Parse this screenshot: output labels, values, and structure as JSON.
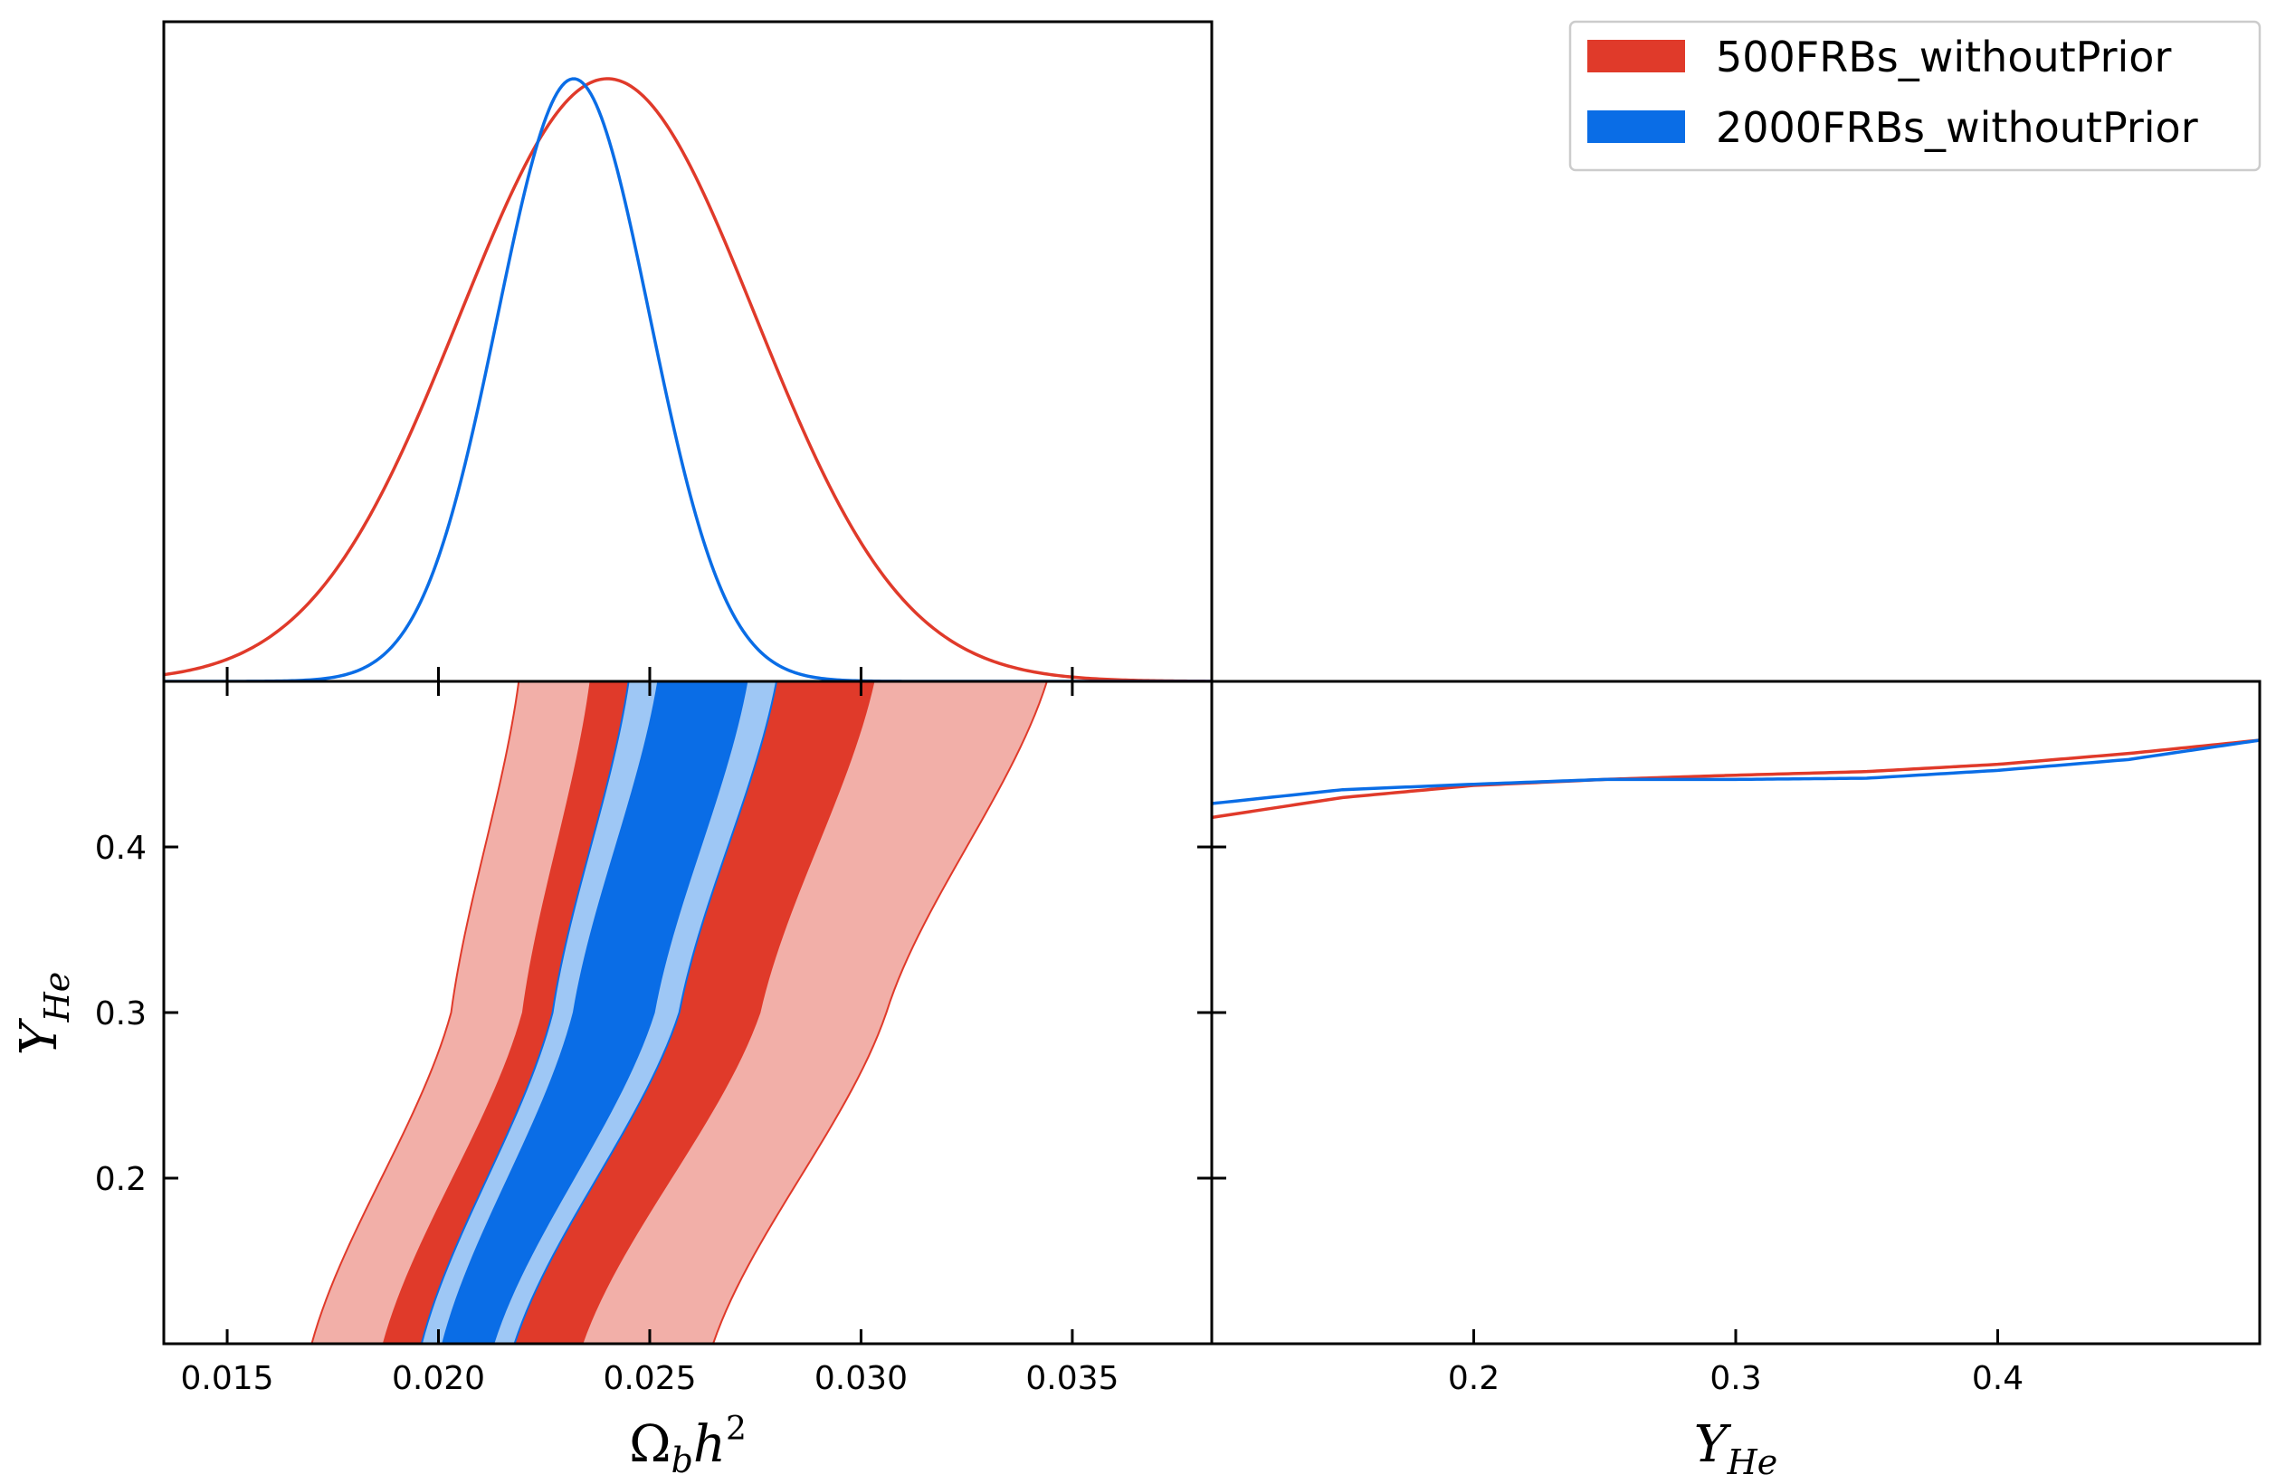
{
  "colors": {
    "red": "#E03A2A",
    "red_light": "#F2AFA8",
    "blue": "#0A6DE6",
    "blue_light": "#9EC7F5"
  },
  "legend": {
    "items": [
      {
        "label": "500FRBs_withoutPrior",
        "color": "#E03A2A"
      },
      {
        "label": "2000FRBs_withoutPrior",
        "color": "#0A6DE6"
      }
    ]
  },
  "axes": {
    "omega": {
      "label": "Ωbh2",
      "range": [
        0.0135,
        0.0383
      ],
      "ticks": [
        0.015,
        0.02,
        0.025,
        0.03,
        0.035
      ],
      "tick_labels": [
        "0.015",
        "0.020",
        "0.025",
        "0.030",
        "0.035"
      ]
    },
    "yhe": {
      "label": "YHe",
      "range": [
        0.1,
        0.5
      ],
      "ticks": [
        0.2,
        0.3,
        0.4
      ],
      "tick_labels": [
        "0.2",
        "0.3",
        "0.4"
      ]
    }
  },
  "chart_data": [
    {
      "type": "line",
      "panel": "1D marginal Ωbh2",
      "xlabel": "",
      "series": [
        {
          "name": "500FRBs_withoutPrior",
          "gaussian": {
            "mean": 0.024,
            "sigma": 0.0035
          }
        },
        {
          "name": "2000FRBs_withoutPrior",
          "gaussian": {
            "mean": 0.0232,
            "sigma": 0.0018
          }
        }
      ]
    },
    {
      "type": "area",
      "panel": "2D contours Ωbh2 vs YHe",
      "xlabel": "Ωbh2",
      "ylabel": "YHe",
      "xlim": [
        0.0135,
        0.0383
      ],
      "ylim": [
        0.1,
        0.5
      ],
      "series": [
        {
          "name": "500FRBs_withoutPrior 95%",
          "y": [
            0.1,
            0.3,
            0.5
          ],
          "x_low": [
            0.017,
            0.0203,
            0.0219
          ],
          "x_high": [
            0.0265,
            0.0306,
            0.0344
          ]
        },
        {
          "name": "500FRBs_withoutPrior 68%",
          "y": [
            0.1,
            0.3,
            0.5
          ],
          "x_low": [
            0.0187,
            0.022,
            0.0236
          ],
          "x_high": [
            0.0234,
            0.0276,
            0.0303
          ]
        },
        {
          "name": "2000FRBs_withoutPrior 95%",
          "y": [
            0.1,
            0.3,
            0.5
          ],
          "x_low": [
            0.0196,
            0.0227,
            0.0245
          ],
          "x_high": [
            0.0218,
            0.0257,
            0.028
          ]
        },
        {
          "name": "2000FRBs_withoutPrior 68%",
          "y": [
            0.1,
            0.3,
            0.5
          ],
          "x_low": [
            0.0201,
            0.0232,
            0.0252
          ],
          "x_high": [
            0.0213,
            0.0251,
            0.0273
          ]
        }
      ]
    },
    {
      "type": "line",
      "panel": "1D marginal YHe",
      "xlabel": "YHe",
      "xlim": [
        0.1,
        0.5
      ],
      "series": [
        {
          "name": "500FRBs_withoutPrior",
          "x": [
            0.1,
            0.15,
            0.2,
            0.25,
            0.3,
            0.35,
            0.4,
            0.45,
            0.5
          ],
          "y": [
            0.872,
            0.905,
            0.925,
            0.935,
            0.942,
            0.948,
            0.96,
            0.978,
            1.0
          ]
        },
        {
          "name": "2000FRBs_withoutPrior",
          "x": [
            0.1,
            0.15,
            0.2,
            0.25,
            0.3,
            0.35,
            0.4,
            0.45,
            0.5
          ],
          "y": [
            0.895,
            0.918,
            0.927,
            0.935,
            0.935,
            0.937,
            0.95,
            0.968,
            1.0
          ]
        }
      ]
    }
  ]
}
